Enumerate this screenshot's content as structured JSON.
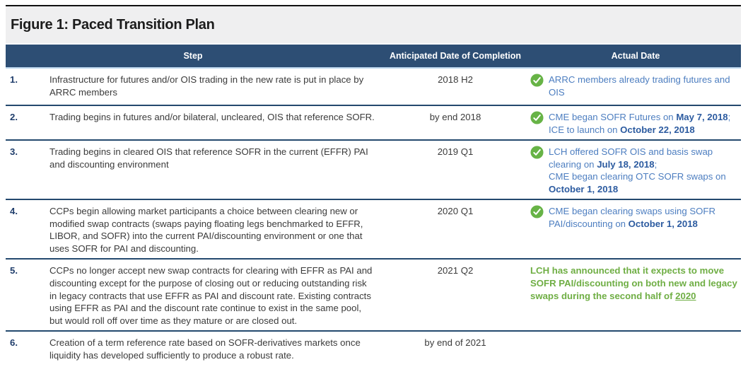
{
  "title": "Figure 1: Paced Transition Plan",
  "colors": {
    "top_border": "#111111",
    "title_bg": "#efeff0",
    "title_text": "#1c1c1c",
    "header_bg": "#2d4e74",
    "header_text": "#ffffff",
    "header_underline": "#bdd7ee",
    "row_border": "#24496e",
    "body_text": "#3b3b3b",
    "number_text": "#1f3d6b",
    "blue_text": "#4d7ec0",
    "blue_bold": "#2c5ba0",
    "green_text": "#6fae44",
    "check_green": "#67b346"
  },
  "table": {
    "headers": {
      "step": "Step",
      "anticipated": "Anticipated Date of Completion",
      "actual": "Actual Date"
    },
    "rows": [
      {
        "number": "1.",
        "step": "Infrastructure for futures and/or OIS trading in the new rate is put in place by ARRC members",
        "anticipated": "2018 H2",
        "actual": {
          "check": true,
          "color": "blue",
          "segments": [
            {
              "text": "ARRC members already trading futures and OIS"
            }
          ]
        }
      },
      {
        "number": "2.",
        "step": "Trading begins in futures and/or bilateral, uncleared, OIS that reference SOFR.",
        "anticipated": "by end 2018",
        "actual": {
          "check": true,
          "color": "blue",
          "segments": [
            {
              "text": "CME began SOFR Futures on "
            },
            {
              "text": "May 7, 2018",
              "bold": true
            },
            {
              "text": "; ICE to launch on "
            },
            {
              "text": "October 22, 2018",
              "bold": true
            }
          ]
        }
      },
      {
        "number": "3.",
        "step": "Trading begins in cleared OIS that reference SOFR in the current (EFFR) PAI and discounting environment",
        "anticipated": "2019 Q1",
        "actual": {
          "check": true,
          "color": "blue",
          "segments": [
            {
              "text": "LCH offered SOFR OIS and basis swap clearing on "
            },
            {
              "text": "July 18, 2018",
              "bold": true
            },
            {
              "text": ";"
            },
            {
              "br": true
            },
            {
              "text": "CME began clearing OTC SOFR swaps on "
            },
            {
              "text": "October 1, 2018",
              "bold": true
            }
          ]
        }
      },
      {
        "number": "4.",
        "step": "CCPs begin allowing market participants a choice between clearing new or modified swap contracts (swaps paying floating legs benchmarked to EFFR, LIBOR, and SOFR) into the current PAI/discounting environment or one that uses SOFR for PAI and discounting.",
        "anticipated": "2020 Q1",
        "actual": {
          "check": true,
          "color": "blue",
          "segments": [
            {
              "text": "CME began clearing swaps using SOFR PAI/discounting on "
            },
            {
              "text": "October 1, 2018",
              "bold": true
            }
          ]
        }
      },
      {
        "number": "5.",
        "step": "CCPs no longer accept new swap contracts for clearing with EFFR as PAI and discounting except for the purpose of closing out or reducing outstanding risk in legacy contracts that use EFFR as PAI and discount rate. Existing contracts using EFFR as PAI and the discount rate continue to exist in the same pool, but would roll off over time as they mature or are closed out.",
        "anticipated": "2021 Q2",
        "actual": {
          "check": false,
          "color": "green",
          "segments": [
            {
              "text": "LCH has announced that it expects to move SOFR PAI/discounting on both new and legacy swaps during the second half of "
            },
            {
              "text": "2020",
              "underline": true
            }
          ]
        }
      },
      {
        "number": "6.",
        "step": "Creation of a term reference rate based on SOFR-derivatives markets once liquidity has developed sufficiently to produce a robust rate.",
        "anticipated": "by end of 2021",
        "actual": null
      }
    ]
  }
}
